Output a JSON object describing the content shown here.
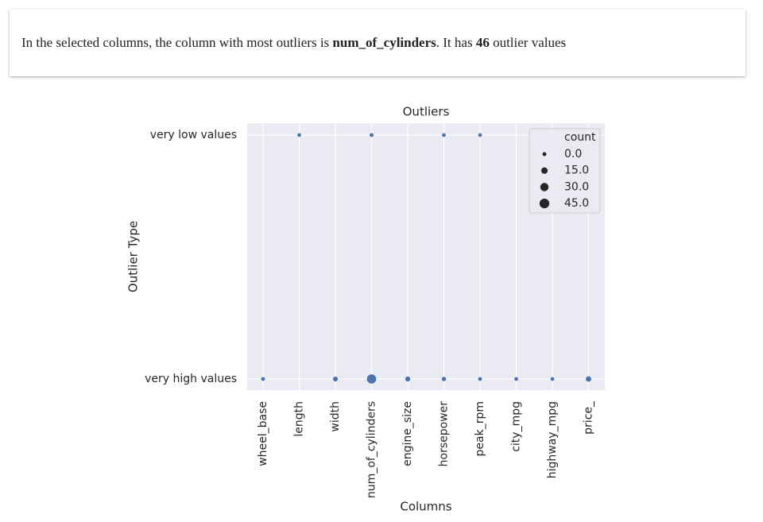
{
  "summary": {
    "parts": [
      "In the selected columns, the column with most outliers is ",
      "num_of_cylinders",
      ". It has ",
      "46",
      " outlier values"
    ]
  },
  "chart_data": {
    "type": "scatter",
    "title": "Outliers",
    "x_label": "Columns",
    "y_label": "Outlier Type",
    "categories": [
      "wheel_base",
      "length",
      "width",
      "num_of_cylinders",
      "engine_size",
      "horsepower",
      "peak_rpm",
      "city_mpg",
      "highway_mpg",
      "price_"
    ],
    "y_categories": [
      "very low values",
      "very high values"
    ],
    "points": {
      "x": [
        "length",
        "num_of_cylinders",
        "horsepower",
        "peak_rpm",
        "wheel_base",
        "width",
        "num_of_cylinders",
        "engine_size",
        "horsepower",
        "peak_rpm",
        "city_mpg",
        "highway_mpg",
        "price_"
      ],
      "y": [
        "very low values",
        "very low values",
        "very low values",
        "very low values",
        "very high values",
        "very high values",
        "very high values",
        "very high values",
        "very high values",
        "very high values",
        "very high values",
        "very high values",
        "very high values"
      ],
      "sizes": [
        2,
        3,
        2,
        2,
        3,
        8,
        46,
        9,
        5,
        3,
        2,
        2,
        12
      ]
    },
    "color": "#4c72b0",
    "legend_title": "count",
    "legend_sizes": [
      {
        "value": 0,
        "label": "0.0"
      },
      {
        "value": 15,
        "label": "15.0"
      },
      {
        "value": 30,
        "label": "30.0"
      },
      {
        "value": 45,
        "label": "45.0"
      }
    ],
    "legend_position": "upper right",
    "grid": true
  }
}
